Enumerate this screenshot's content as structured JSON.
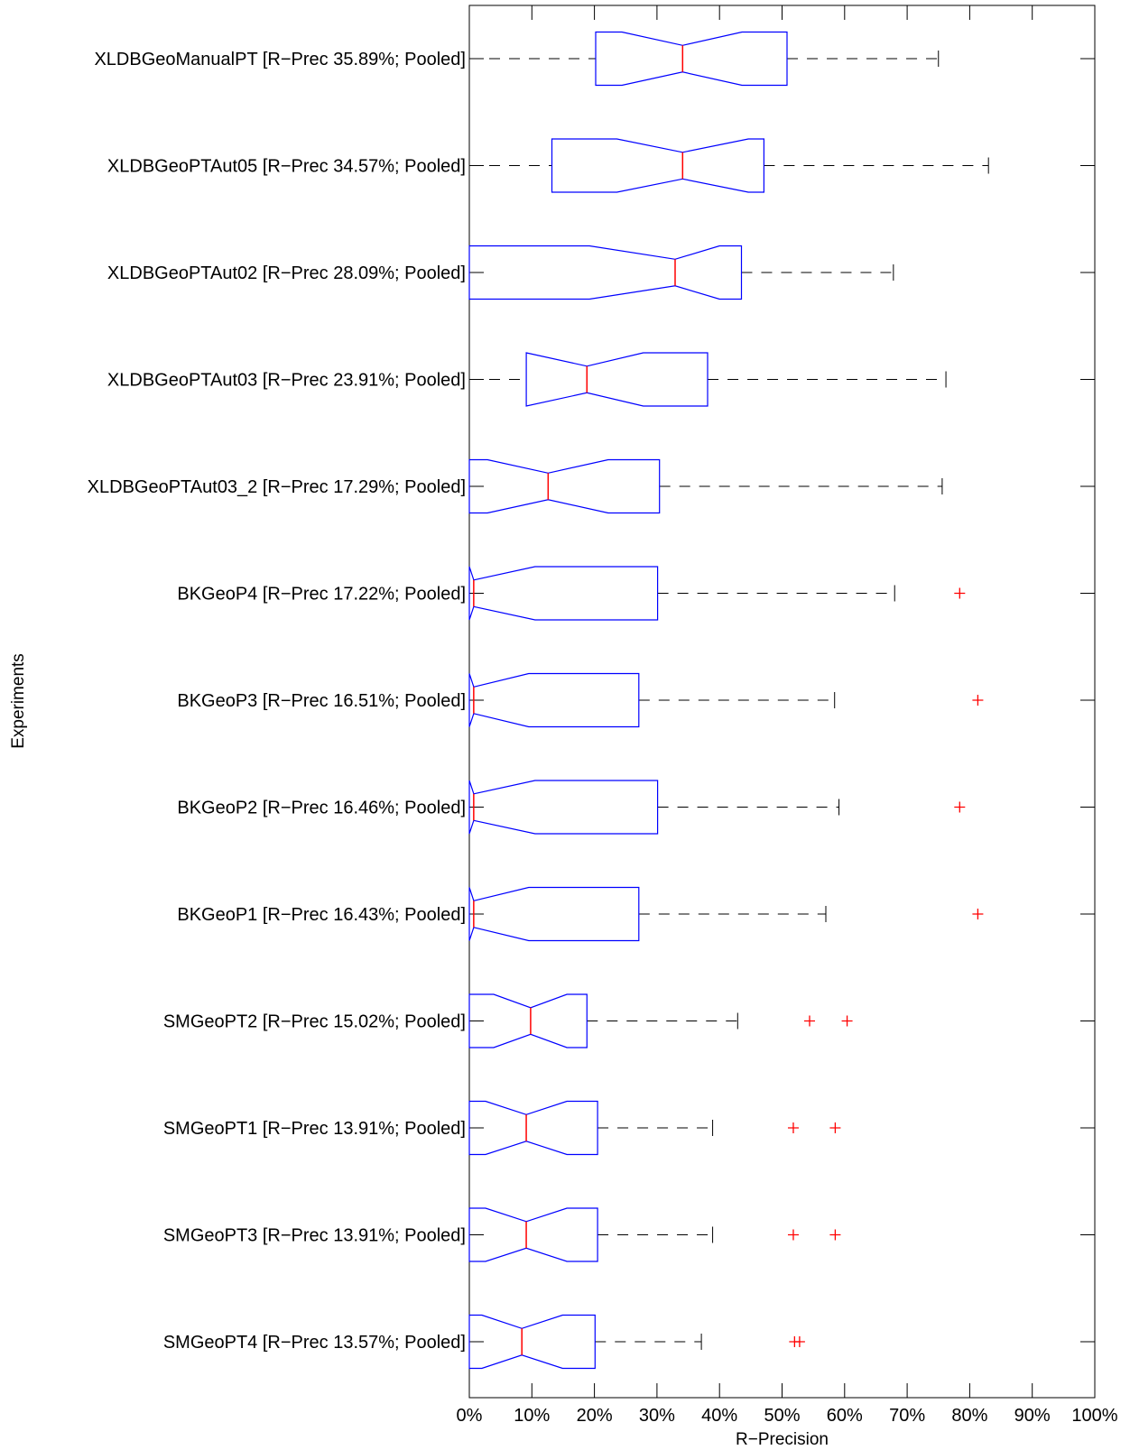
{
  "chart_data": {
    "type": "boxplot",
    "orientation": "horizontal",
    "notched": true,
    "xlabel": "R−Precision",
    "ylabel": "Experiments",
    "xlim": [
      0,
      100
    ],
    "x_ticks": [
      0,
      10,
      20,
      30,
      40,
      50,
      60,
      70,
      80,
      90,
      100
    ],
    "x_tick_labels": [
      "0%",
      "10%",
      "20%",
      "30%",
      "40%",
      "50%",
      "60%",
      "70%",
      "80%",
      "90%",
      "100%"
    ],
    "grid": false,
    "colors": {
      "box": "#0000ff",
      "median": "#ff0000",
      "whisker": "#000000",
      "outlier": "#ff0000"
    },
    "series": [
      {
        "label": "XLDBGeoManualPT [R−Prec 35.89%; Pooled]",
        "q1": 20.2,
        "median": 34.1,
        "q3": 50.8,
        "notch_lo": 24.4,
        "notch_hi": 43.6,
        "whisker_lo": 0,
        "whisker_hi": 75.0,
        "outliers": []
      },
      {
        "label": "XLDBGeoPTAut05 [R−Prec 34.57%; Pooled]",
        "q1": 13.2,
        "median": 34.1,
        "q3": 47.1,
        "notch_lo": 23.6,
        "notch_hi": 44.6,
        "whisker_lo": 0,
        "whisker_hi": 83.0,
        "outliers": []
      },
      {
        "label": "XLDBGeoPTAut02 [R−Prec 28.09%; Pooled]",
        "q1": 0,
        "median": 32.9,
        "q3": 43.5,
        "notch_lo": 19.2,
        "notch_hi": 40.0,
        "whisker_lo": 0,
        "whisker_hi": 67.8,
        "outliers": []
      },
      {
        "label": "XLDBGeoPTAut03 [R−Prec 23.91%; Pooled]",
        "q1": 9.1,
        "median": 18.8,
        "q3": 38.1,
        "notch_lo": 9.1,
        "notch_hi": 27.8,
        "whisker_lo": 0,
        "whisker_hi": 76.2,
        "outliers": []
      },
      {
        "label": "XLDBGeoPTAut03_2 [R−Prec 17.29%; Pooled]",
        "q1": 0,
        "median": 12.6,
        "q3": 30.4,
        "notch_lo": 2.9,
        "notch_hi": 22.2,
        "whisker_lo": 0,
        "whisker_hi": 75.6,
        "outliers": []
      },
      {
        "label": "BKGeoP4 [R−Prec 17.22%; Pooled]",
        "q1": 0,
        "median": 0.7,
        "q3": 30.1,
        "notch_lo": 0,
        "notch_hi": 10.5,
        "whisker_lo": 0,
        "whisker_hi": 68.0,
        "outliers": [
          78.4
        ]
      },
      {
        "label": "BKGeoP3 [R−Prec 16.51%; Pooled]",
        "q1": 0,
        "median": 0.7,
        "q3": 27.1,
        "notch_lo": 0,
        "notch_hi": 9.5,
        "whisker_lo": 0,
        "whisker_hi": 58.4,
        "outliers": [
          81.3
        ]
      },
      {
        "label": "BKGeoP2 [R−Prec 16.46%; Pooled]",
        "q1": 0,
        "median": 0.7,
        "q3": 30.1,
        "notch_lo": 0,
        "notch_hi": 10.5,
        "whisker_lo": 0,
        "whisker_hi": 59.1,
        "outliers": [
          78.4
        ]
      },
      {
        "label": "BKGeoP1 [R−Prec 16.43%; Pooled]",
        "q1": 0,
        "median": 0.7,
        "q3": 27.1,
        "notch_lo": 0,
        "notch_hi": 9.5,
        "whisker_lo": 0,
        "whisker_hi": 57.0,
        "outliers": [
          81.3
        ]
      },
      {
        "label": "SMGeoPT2 [R−Prec 15.02%; Pooled]",
        "q1": 0,
        "median": 9.8,
        "q3": 18.8,
        "notch_lo": 3.9,
        "notch_hi": 15.6,
        "whisker_lo": 0,
        "whisker_hi": 42.9,
        "outliers": [
          54.4,
          60.4
        ]
      },
      {
        "label": "SMGeoPT1 [R−Prec 13.91%; Pooled]",
        "q1": 0,
        "median": 9.1,
        "q3": 20.5,
        "notch_lo": 2.6,
        "notch_hi": 15.6,
        "whisker_lo": 0,
        "whisker_hi": 38.9,
        "outliers": [
          51.8,
          58.5
        ]
      },
      {
        "label": "SMGeoPT3 [R−Prec 13.91%; Pooled]",
        "q1": 0,
        "median": 9.1,
        "q3": 20.5,
        "notch_lo": 2.6,
        "notch_hi": 15.6,
        "whisker_lo": 0,
        "whisker_hi": 38.9,
        "outliers": [
          51.8,
          58.5
        ]
      },
      {
        "label": "SMGeoPT4 [R−Prec 13.57%; Pooled]",
        "q1": 0,
        "median": 8.4,
        "q3": 20.1,
        "notch_lo": 2.0,
        "notch_hi": 14.9,
        "whisker_lo": 0,
        "whisker_hi": 37.1,
        "outliers": [
          52.0,
          52.8
        ]
      }
    ]
  }
}
